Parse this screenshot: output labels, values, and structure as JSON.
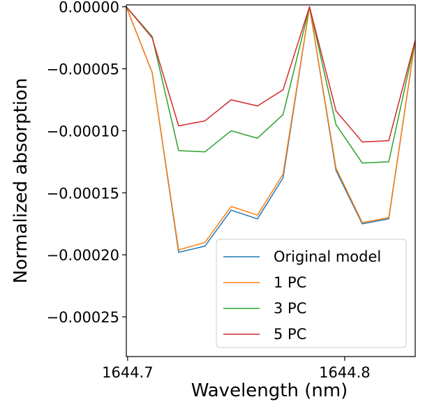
{
  "chart_data": {
    "type": "line",
    "xlabel": "Wavelength (nm)",
    "ylabel": "Normalized absorption",
    "xlim": [
      1644.6994,
      1644.8325
    ],
    "ylim": [
      -0.000282,
      1.5e-06
    ],
    "x_ticks": [
      1644.7,
      1644.8
    ],
    "x_tick_labels": [
      "1644.7",
      "1644.8"
    ],
    "y_ticks": [
      0,
      -5e-05,
      -0.0001,
      -0.00015,
      -0.0002,
      -0.00025
    ],
    "y_tick_labels": [
      "0.00000",
      "−0.00005",
      "−0.00010",
      "−0.00015",
      "−0.00020",
      "−0.00025"
    ],
    "grid": false,
    "legend_position": "lower-right",
    "x": [
      1644.6994,
      1644.7113,
      1644.7235,
      1644.7356,
      1644.7477,
      1644.7598,
      1644.7716,
      1644.7838,
      1644.796,
      1644.8081,
      1644.8203,
      1644.8325
    ],
    "series": [
      {
        "name": "Original model",
        "color": "#1f77b4",
        "values": [
          0,
          -5.3e-05,
          -0.000198,
          -0.000193,
          -0.000164,
          -0.000171,
          -0.000138,
          0,
          -0.000132,
          -0.000175,
          -0.000171,
          -2.7e-05
        ]
      },
      {
        "name": "1 PC",
        "color": "#ff7f0e",
        "values": [
          0,
          -5.3e-05,
          -0.000196,
          -0.00019,
          -0.000161,
          -0.000168,
          -0.000135,
          0,
          -0.00013,
          -0.000174,
          -0.00017,
          -2.7e-05
        ]
      },
      {
        "name": "3 PC",
        "color": "#2ca02c",
        "values": [
          0,
          -2.4e-05,
          -0.000116,
          -0.000117,
          -0.0001,
          -0.000106,
          -8.7e-05,
          0,
          -9.5e-05,
          -0.000126,
          -0.000125,
          -2.7e-05
        ]
      },
      {
        "name": "5 PC",
        "color": "#d62728",
        "values": [
          0,
          -2.5e-05,
          -9.6e-05,
          -9.2e-05,
          -7.5e-05,
          -8e-05,
          -6.7e-05,
          0,
          -8.4e-05,
          -0.000109,
          -0.000108,
          -2.7e-05
        ]
      }
    ]
  }
}
